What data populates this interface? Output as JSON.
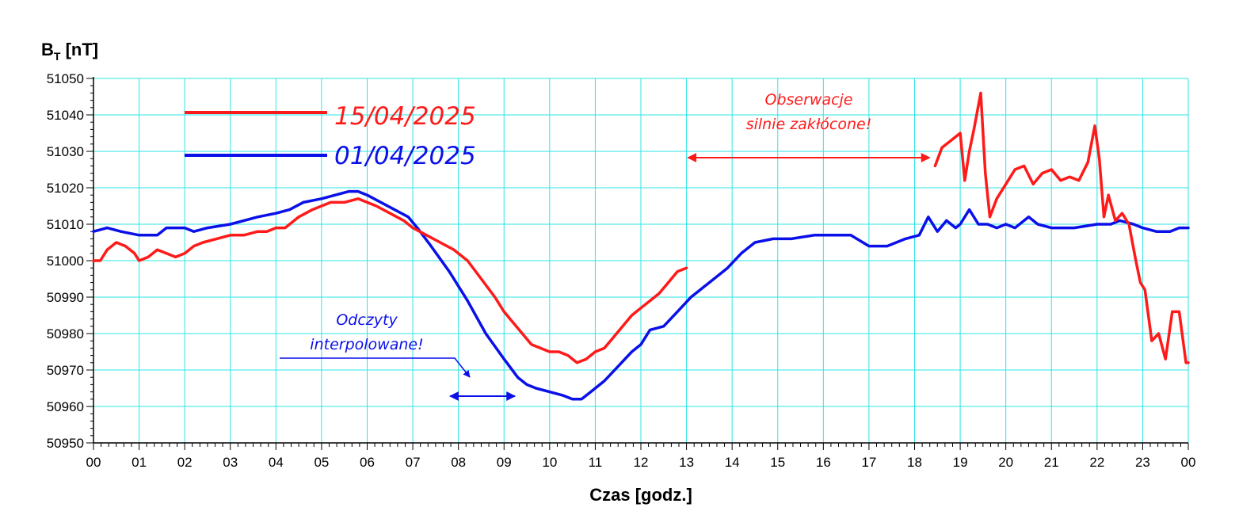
{
  "chart_data": {
    "type": "line",
    "ylabel_main": "B",
    "ylabel_sub": "T",
    "ylabel_unit": " [nT]",
    "xlabel": "Czas [godz.]",
    "xlim": [
      0,
      24
    ],
    "ylim": [
      50950,
      51050
    ],
    "x_tick_labels": [
      "00",
      "01",
      "02",
      "03",
      "04",
      "05",
      "06",
      "07",
      "08",
      "09",
      "10",
      "11",
      "12",
      "13",
      "14",
      "15",
      "16",
      "17",
      "18",
      "19",
      "20",
      "21",
      "22",
      "23",
      "00"
    ],
    "y_tick_labels": [
      "50950",
      "50960",
      "50970",
      "50980",
      "50990",
      "51000",
      "51010",
      "51020",
      "51030",
      "51040",
      "51050"
    ],
    "grid": true,
    "series": [
      {
        "name": "15/04/2025",
        "color": "#ff1a1a",
        "x": [
          0,
          0.15,
          0.3,
          0.5,
          0.7,
          0.9,
          1.0,
          1.2,
          1.4,
          1.6,
          1.8,
          2.0,
          2.2,
          2.4,
          2.7,
          3.0,
          3.3,
          3.6,
          3.8,
          4.0,
          4.2,
          4.5,
          4.8,
          5.0,
          5.2,
          5.5,
          5.8,
          6.0,
          6.2,
          6.5,
          6.8,
          7.0,
          7.3,
          7.6,
          7.9,
          8.2,
          8.5,
          8.8,
          9.0,
          9.2,
          9.4,
          9.6,
          9.8,
          10.0,
          10.2,
          10.4,
          10.6,
          10.8,
          11.0,
          11.2,
          11.4,
          11.6,
          11.8,
          12.0,
          12.2,
          12.4,
          12.6,
          12.8,
          13.0,
          18.45,
          18.6,
          18.8,
          19.0,
          19.1,
          19.2,
          19.3,
          19.45,
          19.55,
          19.65,
          19.8,
          20.0,
          20.2,
          20.4,
          20.6,
          20.8,
          21.0,
          21.2,
          21.4,
          21.6,
          21.8,
          21.95,
          22.05,
          22.15,
          22.25,
          22.4,
          22.55,
          22.7,
          22.85,
          22.95,
          23.05,
          23.2,
          23.35,
          23.5,
          23.65,
          23.8,
          23.95,
          24.0
        ],
        "y": [
          51000,
          51000,
          51003,
          51005,
          51004,
          51002,
          51000,
          51001,
          51003,
          51002,
          51001,
          51002,
          51004,
          51005,
          51006,
          51007,
          51007,
          51008,
          51008,
          51009,
          51009,
          51012,
          51014,
          51015,
          51016,
          51016,
          51017,
          51016,
          51015,
          51013,
          51011,
          51009,
          51007,
          51005,
          51003,
          51000,
          50995,
          50990,
          50986,
          50983,
          50980,
          50977,
          50976,
          50975,
          50975,
          50974,
          50972,
          50973,
          50975,
          50976,
          50979,
          50982,
          50985,
          50987,
          50989,
          50991,
          50994,
          50997,
          50998,
          51026,
          51031,
          51033,
          51035,
          51022,
          51030,
          51036,
          51046,
          51024,
          51012,
          51017,
          51021,
          51025,
          51026,
          51021,
          51024,
          51025,
          51022,
          51023,
          51022,
          51027,
          51037,
          51028,
          51012,
          51018,
          51011,
          51013,
          51010,
          51000,
          50994,
          50992,
          50978,
          50980,
          50973,
          50986,
          50986,
          50972,
          50972
        ]
      },
      {
        "name": "01/04/2025",
        "color": "#0a10e8",
        "x": [
          0,
          0.3,
          0.6,
          1.0,
          1.4,
          1.6,
          2.0,
          2.2,
          2.5,
          3.0,
          3.3,
          3.6,
          4.0,
          4.3,
          4.6,
          5.0,
          5.3,
          5.6,
          5.8,
          6.0,
          6.3,
          6.6,
          6.9,
          7.1,
          7.4,
          7.8,
          8.2,
          8.6,
          9.0,
          9.3,
          9.5,
          9.7,
          10.0,
          10.3,
          10.5,
          10.7,
          10.9,
          11.2,
          11.5,
          11.8,
          12.0,
          12.2,
          12.5,
          12.8,
          13.1,
          13.5,
          13.9,
          14.2,
          14.5,
          14.9,
          15.3,
          15.8,
          16.2,
          16.6,
          17.0,
          17.4,
          17.8,
          18.1,
          18.3,
          18.5,
          18.7,
          18.9,
          19.0,
          19.2,
          19.4,
          19.6,
          19.8,
          20.0,
          20.2,
          20.5,
          20.7,
          21.0,
          21.5,
          22.0,
          22.3,
          22.5,
          22.8,
          23.0,
          23.3,
          23.6,
          23.8,
          24.0
        ],
        "y": [
          51008,
          51009,
          51008,
          51007,
          51007,
          51009,
          51009,
          51008,
          51009,
          51010,
          51011,
          51012,
          51013,
          51014,
          51016,
          51017,
          51018,
          51019,
          51019,
          51018,
          51016,
          51014,
          51012,
          51009,
          51004,
          50997,
          50989,
          50980,
          50973,
          50968,
          50966,
          50965,
          50964,
          50963,
          50962,
          50962,
          50964,
          50967,
          50971,
          50975,
          50977,
          50981,
          50982,
          50986,
          50990,
          50994,
          50998,
          51002,
          51005,
          51006,
          51006,
          51007,
          51007,
          51007,
          51004,
          51004,
          51006,
          51007,
          51012,
          51008,
          51011,
          51009,
          51010,
          51014,
          51010,
          51010,
          51009,
          51010,
          51009,
          51012,
          51010,
          51009,
          51009,
          51010,
          51010,
          51011,
          51010,
          51009,
          51008,
          51008,
          51009,
          51009
        ]
      }
    ],
    "annotations": {
      "interp_line1": "Odczyty",
      "interp_line2": "interpolowane!",
      "interp_range": [
        8.2,
        9.1
      ],
      "disturb_line1": "Obserwacje",
      "disturb_line2": "silnie zakłócone!",
      "disturb_range": [
        13.1,
        18.4
      ]
    }
  }
}
